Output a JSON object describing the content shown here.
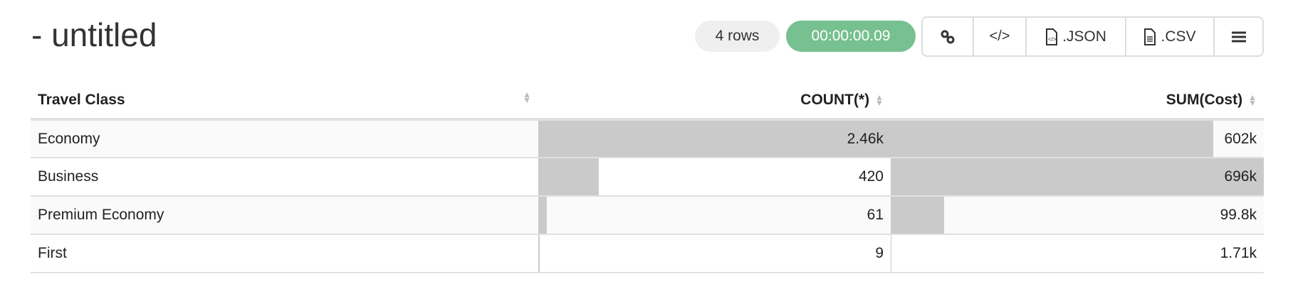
{
  "title": "- untitled",
  "row_count": "4 rows",
  "elapsed": "00:00:00.09",
  "toolbar": {
    "link_icon": "link-icon",
    "embed_icon": "code-icon",
    "json_label": ".JSON",
    "csv_label": ".CSV",
    "menu_icon": "hamburger-icon"
  },
  "colors": {
    "timer": "#77c08f",
    "bar": "#cacaca"
  },
  "table": {
    "columns": [
      "Travel Class",
      "COUNT(*)",
      "SUM(Cost)"
    ],
    "rows": [
      {
        "class": "Economy",
        "count": "2.46k",
        "count_value": 2460,
        "sum": "602k",
        "sum_value": 602000
      },
      {
        "class": "Business",
        "count": "420",
        "count_value": 420,
        "sum": "696k",
        "sum_value": 696000
      },
      {
        "class": "Premium Economy",
        "count": "61",
        "count_value": 61,
        "sum": "99.8k",
        "sum_value": 99800
      },
      {
        "class": "First",
        "count": "9",
        "count_value": 9,
        "sum": "1.71k",
        "sum_value": 1710
      }
    ]
  }
}
